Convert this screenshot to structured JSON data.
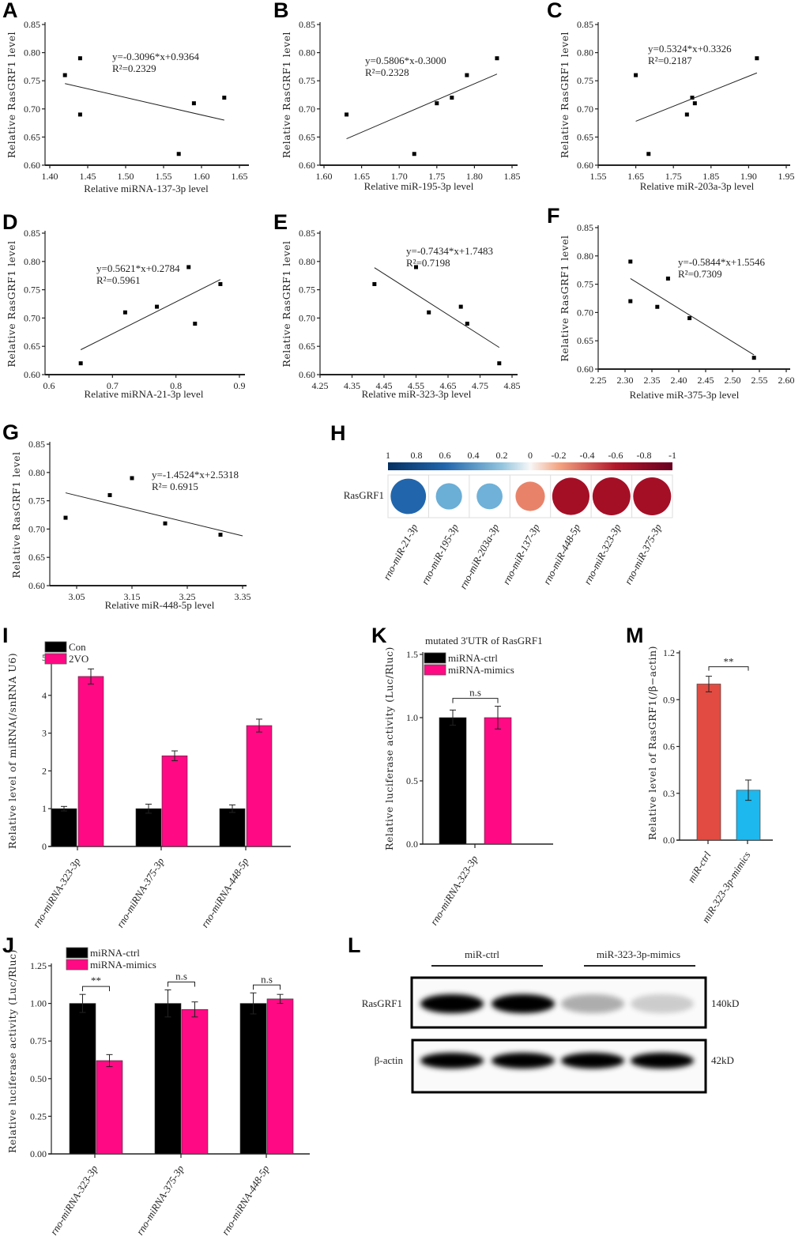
{
  "chart_data": [
    {
      "letter": "A",
      "type": "scatter",
      "xlabel": "Relative miRNA-137-3p level",
      "ylabel": "Relative RasGRF1 level",
      "equation": "y=-0.3096*x+0.9364",
      "r2": "R²=0.2329",
      "xticks": [
        "1.40",
        "1.45",
        "1.50",
        "1.55",
        "1.60",
        "1.65"
      ],
      "yticks": [
        "0.60",
        "0.65",
        "0.70",
        "0.75",
        "0.80",
        "0.85"
      ],
      "xlim": [
        1.4,
        1.65
      ],
      "ylim": [
        0.6,
        0.85
      ],
      "points": [
        [
          1.42,
          0.76
        ],
        [
          1.44,
          0.79
        ],
        [
          1.44,
          0.69
        ],
        [
          1.57,
          0.62
        ],
        [
          1.59,
          0.71
        ],
        [
          1.63,
          0.72
        ]
      ],
      "fit_line": [
        [
          1.42,
          0.745
        ],
        [
          1.63,
          0.68
        ]
      ]
    },
    {
      "letter": "B",
      "type": "scatter",
      "xlabel": "Relative miR-195-3p level",
      "ylabel": "Relative RasGRF1 level",
      "equation": "y=0.5806*x-0.3000",
      "r2": "R²=0.2328",
      "xticks": [
        "1.60",
        "1.65",
        "1.70",
        "1.75",
        "1.80",
        "1.85"
      ],
      "yticks": [
        "0.60",
        "0.65",
        "0.70",
        "0.75",
        "0.80",
        "0.85"
      ],
      "xlim": [
        1.6,
        1.85
      ],
      "ylim": [
        0.6,
        0.85
      ],
      "points": [
        [
          1.63,
          0.69
        ],
        [
          1.72,
          0.62
        ],
        [
          1.75,
          0.71
        ],
        [
          1.77,
          0.72
        ],
        [
          1.79,
          0.76
        ],
        [
          1.83,
          0.79
        ]
      ],
      "fit_line": [
        [
          1.63,
          0.647
        ],
        [
          1.83,
          0.762
        ]
      ]
    },
    {
      "letter": "C",
      "type": "scatter",
      "xlabel": "Relative miR-203a-3p level",
      "ylabel": "Relative RasGRF1 level",
      "equation": "y=0.5324*x+0.3326",
      "r2": "R²=0.2187",
      "xticks": [
        "1.55",
        "1.65",
        "1.75",
        "1.85",
        "1.90",
        "1.95"
      ],
      "xscale": "ticks",
      "yticks": [
        "0.60",
        "0.65",
        "0.70",
        "0.75",
        "0.80",
        "0.85"
      ],
      "xlim": [
        1.55,
        1.95
      ],
      "ylim": [
        0.6,
        0.85
      ],
      "points": [
        [
          1.65,
          0.76
        ],
        [
          1.684,
          0.62
        ],
        [
          1.786,
          0.69
        ],
        [
          1.8,
          0.72
        ],
        [
          1.807,
          0.71
        ],
        [
          1.911,
          0.79
        ]
      ],
      "fit_line": [
        [
          1.65,
          0.678
        ],
        [
          1.911,
          0.764
        ]
      ]
    },
    {
      "letter": "D",
      "type": "scatter",
      "xlabel": "Relative miRNA-21-3p level",
      "ylabel": "Relative RasGRF1 level",
      "equation": "y=0.5621*x+0.2784",
      "r2": "R²=0.5961",
      "xticks": [
        "0.6",
        "0.7",
        "0.8",
        "0.9"
      ],
      "yticks": [
        "0.60",
        "0.65",
        "0.70",
        "0.75",
        "0.80",
        "0.85"
      ],
      "xlim": [
        0.6,
        0.9
      ],
      "ylim": [
        0.6,
        0.85
      ],
      "points": [
        [
          0.65,
          0.62
        ],
        [
          0.72,
          0.71
        ],
        [
          0.77,
          0.72
        ],
        [
          0.82,
          0.79
        ],
        [
          0.83,
          0.69
        ],
        [
          0.87,
          0.76
        ]
      ],
      "fit_line": [
        [
          0.65,
          0.644
        ],
        [
          0.87,
          0.768
        ]
      ]
    },
    {
      "letter": "E",
      "type": "scatter",
      "xlabel": "Relative miR-323-3p level",
      "ylabel": "Relative RasGRF1 level",
      "equation": "y=-0.7434*x+1.7483",
      "r2": "R²=0.7198",
      "xticks": [
        "4.25",
        "4.35",
        "4.45",
        "4.55",
        "4.65",
        "4.75",
        "4.85"
      ],
      "yticks": [
        "0.60",
        "0.65",
        "0.70",
        "0.75",
        "0.80",
        "0.85"
      ],
      "xlim": [
        4.25,
        4.85
      ],
      "ylim": [
        0.6,
        0.85
      ],
      "points": [
        [
          4.42,
          0.76
        ],
        [
          4.55,
          0.79
        ],
        [
          4.59,
          0.71
        ],
        [
          4.69,
          0.72
        ],
        [
          4.71,
          0.69
        ],
        [
          4.81,
          0.62
        ]
      ],
      "fit_line": [
        [
          4.42,
          0.789
        ],
        [
          4.81,
          0.648
        ]
      ]
    },
    {
      "letter": "F",
      "type": "scatter",
      "xlabel": "Relative miR-375-3p level",
      "ylabel": "Relative RasGRF1 level",
      "equation": "y=-0.5844*x+1.5546",
      "r2": "R²=0.7309",
      "xticks": [
        "2.25",
        "2.30",
        "2.35",
        "2.40",
        "2.45",
        "2.50",
        "2.55",
        "2.60"
      ],
      "yticks": [
        "0.60",
        "0.65",
        "0.70",
        "0.75",
        "0.80",
        "0.85"
      ],
      "xlim": [
        2.25,
        2.6
      ],
      "ylim": [
        0.6,
        0.85
      ],
      "points": [
        [
          2.31,
          0.79
        ],
        [
          2.31,
          0.72
        ],
        [
          2.36,
          0.71
        ],
        [
          2.38,
          0.76
        ],
        [
          2.42,
          0.69
        ],
        [
          2.54,
          0.62
        ]
      ],
      "fit_line": [
        [
          2.31,
          0.76
        ],
        [
          2.54,
          0.625
        ]
      ]
    },
    {
      "letter": "G",
      "type": "scatter",
      "xlabel": "Relative miR-448-5p level",
      "ylabel": "Relative RasGRF1 level",
      "equation": "y=-1.4524*x+2.5318",
      "r2": "R²= 0.6915",
      "xticks": [
        "3.05",
        "3.15",
        "3.25",
        "3.35"
      ],
      "yticks": [
        "0.60",
        "0.65",
        "0.70",
        "0.75",
        "0.80",
        "0.85"
      ],
      "xlim": [
        3.0,
        3.35
      ],
      "ylim": [
        0.6,
        0.85
      ],
      "points": [
        [
          3.03,
          0.72
        ],
        [
          3.11,
          0.76
        ],
        [
          3.15,
          0.79
        ],
        [
          3.21,
          0.71
        ],
        [
          3.31,
          0.69
        ]
      ],
      "fit_line": [
        [
          3.03,
          0.764
        ],
        [
          3.35,
          0.688
        ]
      ]
    },
    {
      "letter": "H",
      "type": "heatmap",
      "row_label": "RasGRF1",
      "colorbar_ticks": [
        "1",
        "0.8",
        "0.6",
        "0.4",
        "0.2",
        "0",
        "-0.2",
        "-0.4",
        "-0.6",
        "-0.8",
        "-1"
      ],
      "columns": [
        "rno-miR-21-3p",
        "rno-miR-195-3p",
        "rno-miR-203a-3p",
        "rno-miR-137-3p",
        "rno-miR-448-5p",
        "rno-miR-323-3p",
        "rno-miR-375-3p"
      ],
      "values": [
        0.77,
        0.48,
        0.47,
        -0.58,
        -0.83,
        -0.85,
        -0.85
      ],
      "colors": [
        "#2166ac",
        "#6baed6",
        "#6fb1d8",
        "#e8836a",
        "#a50f26",
        "#a50f26",
        "#a50f26"
      ]
    },
    {
      "letter": "I",
      "type": "bar",
      "ylabel": "Relative level of miRNA(/snRNA U6)",
      "yticks": [
        "0",
        "1",
        "2",
        "3",
        "4",
        "5"
      ],
      "ylim": [
        0,
        5
      ],
      "categories": [
        "rno-miRNA-323-3p",
        "rno-miRNA-375-3p",
        "rno-miRNA-448-5p"
      ],
      "series": [
        {
          "name": "Con",
          "color": "#000000",
          "values": [
            1.0,
            1.0,
            1.0
          ],
          "errors": [
            0.06,
            0.12,
            0.1
          ]
        },
        {
          "name": "2VO",
          "color": "#ff0a84",
          "values": [
            4.5,
            2.4,
            3.2
          ],
          "errors": [
            0.2,
            0.13,
            0.17
          ]
        }
      ],
      "significance": []
    },
    {
      "letter": "K",
      "type": "bar",
      "title": "mutated 3'UTR of RasGRF1",
      "ylabel": "Relative luciferase activity (Luc/Rluc)",
      "yticks": [
        "0.0",
        "0.5",
        "1.0",
        "1.5"
      ],
      "ylim": [
        0,
        1.5
      ],
      "categories": [
        "rno-miRNA-323-3p"
      ],
      "series": [
        {
          "name": "miRNA-ctrl",
          "color": "#000000",
          "values": [
            1.0
          ],
          "errors": [
            0.06
          ]
        },
        {
          "name": "miRNA-mimics",
          "color": "#ff0a84",
          "values": [
            1.0
          ],
          "errors": [
            0.09
          ]
        }
      ],
      "significance": [
        "n.s"
      ]
    },
    {
      "letter": "M",
      "type": "bar",
      "ylabel": "Relative level of RasGRF1(/β−actin)",
      "yticks": [
        "0.0",
        "0.3",
        "0.6",
        "0.9",
        "1.2"
      ],
      "ylim": [
        0,
        1.2
      ],
      "categories": [
        "miR-ctrl",
        "miR-323-3p-mimics"
      ],
      "series": [
        {
          "name": "",
          "colors": [
            "#e24b41",
            "#1cb8ee"
          ],
          "values": [
            1.0,
            0.32
          ],
          "errors": [
            0.05,
            0.065
          ]
        }
      ],
      "significance_between": "**"
    },
    {
      "letter": "J",
      "type": "bar",
      "ylabel": "Relative luciferase activity (Luc/Rluc)",
      "yticks": [
        "0.00",
        "0.25",
        "0.50",
        "0.75",
        "1.00",
        "1.25"
      ],
      "ylim": [
        0,
        1.25
      ],
      "categories": [
        "rno-miRNA-323-3p",
        "rno-miRNA-375-3p",
        "rno-miRNA-448-5p"
      ],
      "series": [
        {
          "name": "miRNA-ctrl",
          "color": "#000000",
          "values": [
            1.0,
            1.0,
            1.0
          ],
          "errors": [
            0.06,
            0.09,
            0.07
          ]
        },
        {
          "name": "miRNA-mimics",
          "color": "#ff0a84",
          "values": [
            0.62,
            0.96,
            1.03
          ],
          "errors": [
            0.04,
            0.05,
            0.03
          ]
        }
      ],
      "significance": [
        "**",
        "n.s",
        "n.s"
      ]
    }
  ],
  "western_blot": {
    "letter": "L",
    "groups": [
      "miR-ctrl",
      "miR-323-3p-mimics"
    ],
    "rows": [
      {
        "protein": "RasGRF1",
        "size": "140kD",
        "band_intensity": [
          1.0,
          1.0,
          0.3,
          0.18
        ]
      },
      {
        "protein": "β-actin",
        "size": "42kD",
        "band_intensity": [
          1.0,
          1.0,
          1.0,
          1.0
        ]
      }
    ]
  }
}
